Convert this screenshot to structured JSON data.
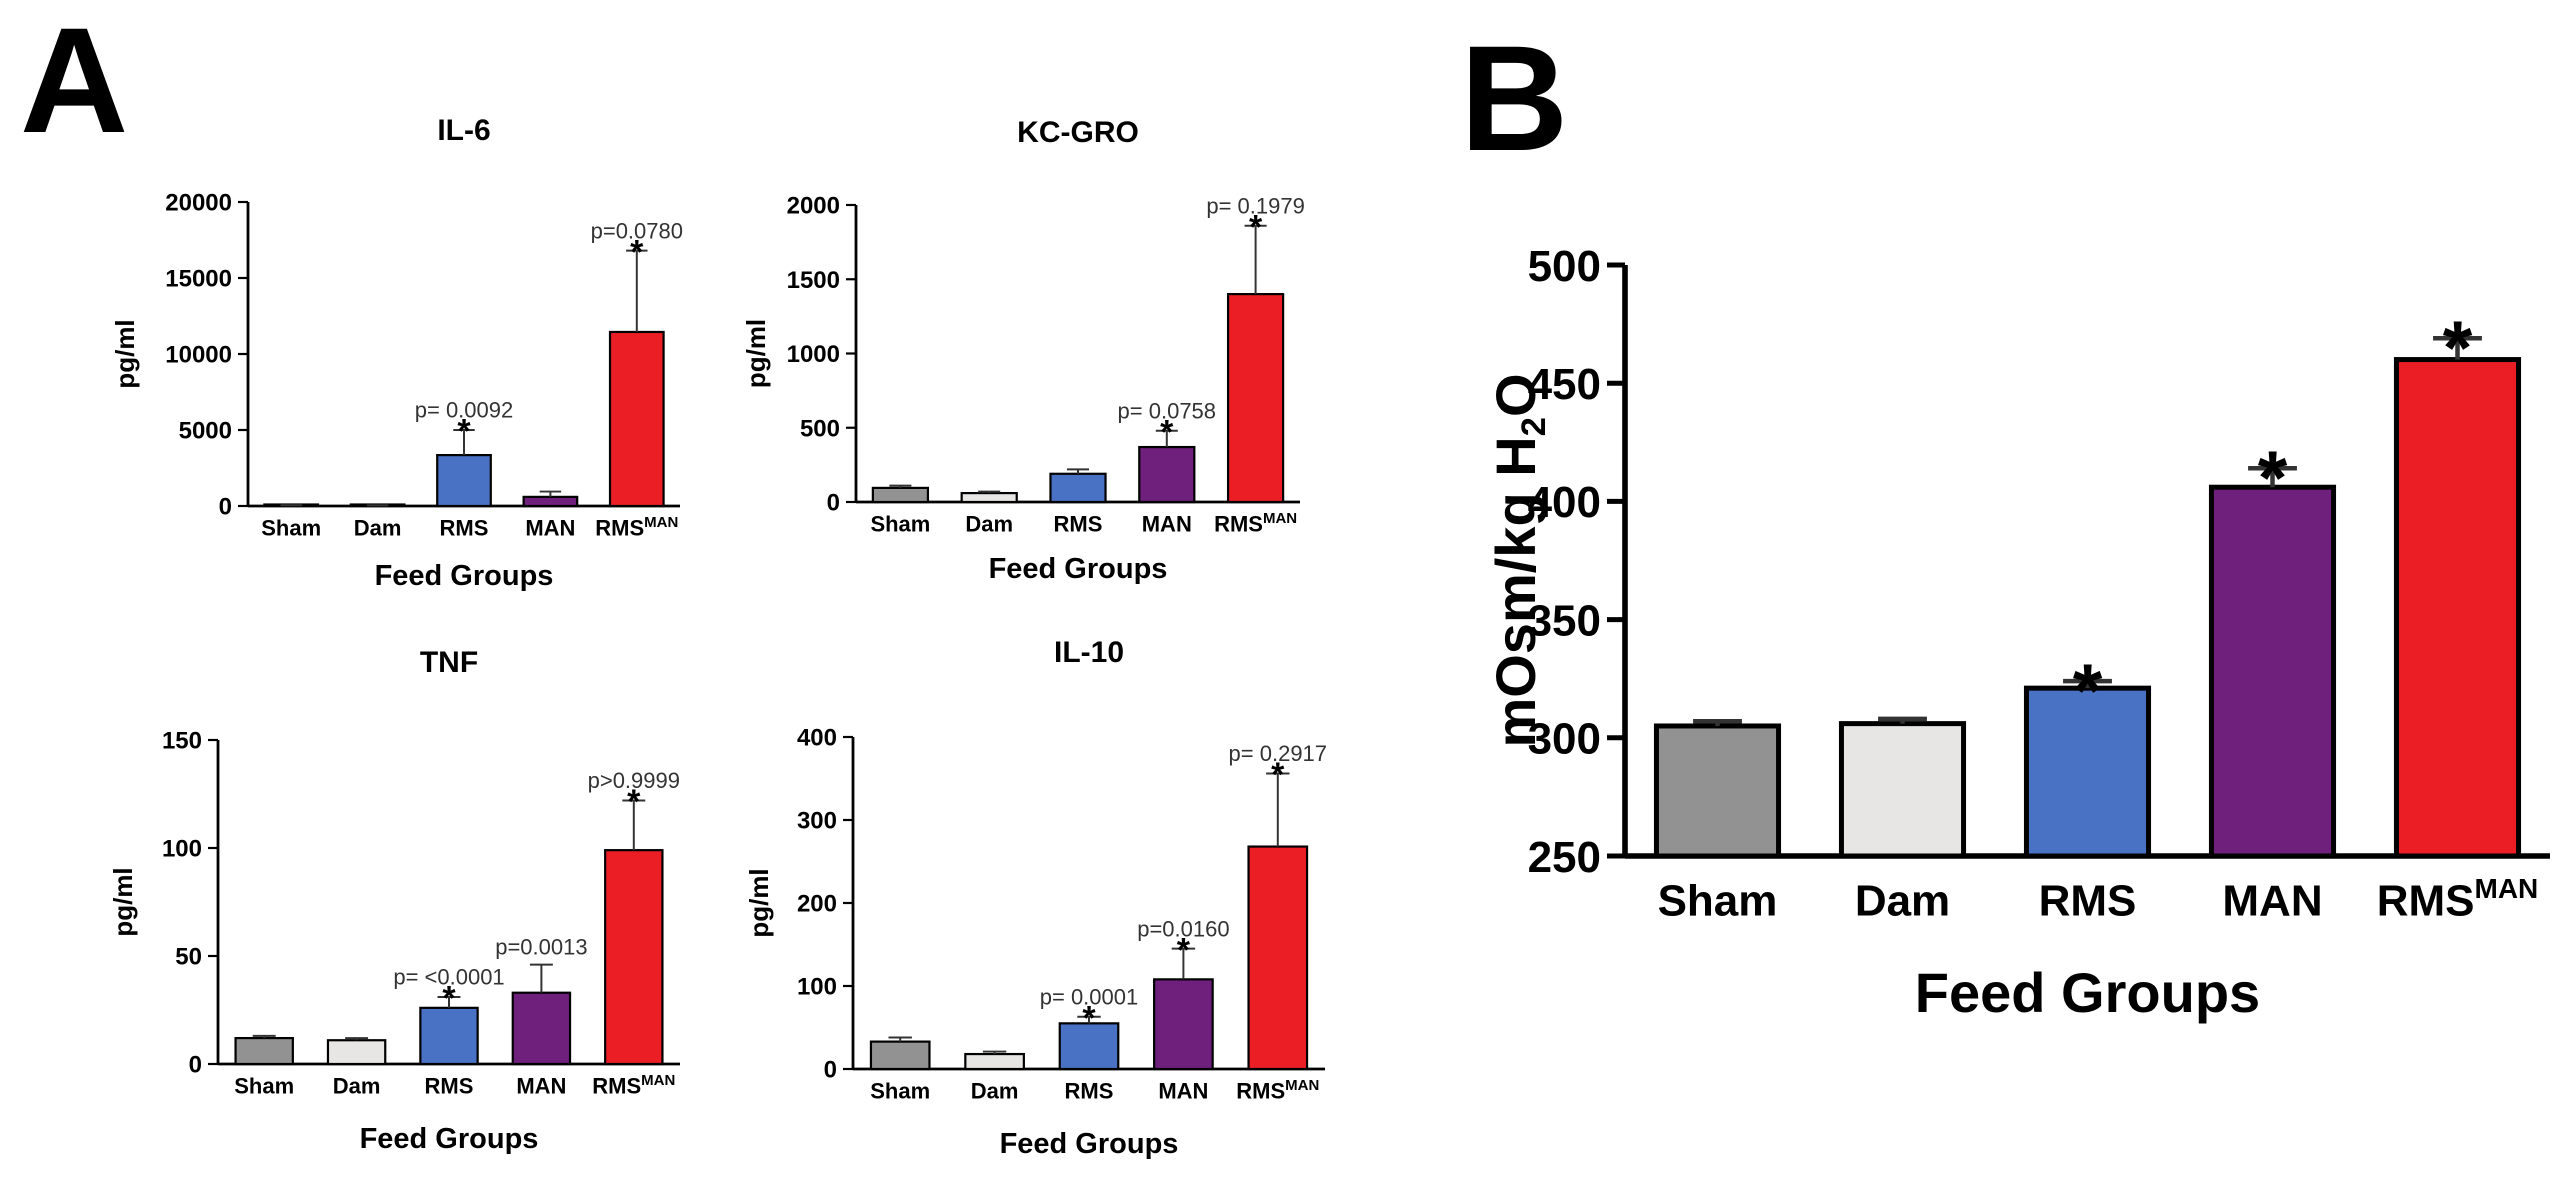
{
  "panels": {
    "a": "A",
    "b": "B"
  },
  "chart_data": [
    {
      "id": "il6",
      "type": "bar",
      "panel": "A",
      "title": "IL-6",
      "xlabel": "Feed Groups",
      "ylabel": "pg/ml",
      "categories": [
        "Sham",
        "Dam",
        "RMS",
        "MAN",
        "RMS"
      ],
      "category_superscripts": [
        "",
        "",
        "",
        "",
        "MAN"
      ],
      "values": [
        30,
        20,
        3350,
        600,
        11450
      ],
      "errors": [
        20,
        20,
        1650,
        350,
        5350
      ],
      "stars": [
        "",
        "",
        "*",
        "",
        "*"
      ],
      "pvalues": [
        "",
        "",
        "p= 0.0092",
        "",
        "p=0.0780"
      ],
      "ylim": [
        0,
        20000
      ],
      "yticks": [
        0,
        5000,
        10000,
        15000,
        20000
      ],
      "colors": [
        "#929292",
        "#e8e6e5",
        "#4a72c4",
        "#6f1f7c",
        "#ec1e25"
      ]
    },
    {
      "id": "kcgro",
      "type": "bar",
      "panel": "A",
      "title": "KC-GRO",
      "xlabel": "Feed Groups",
      "ylabel": "pg/ml",
      "categories": [
        "Sham",
        "Dam",
        "RMS",
        "MAN",
        "RMS"
      ],
      "category_superscripts": [
        "",
        "",
        "",
        "",
        "MAN"
      ],
      "values": [
        95,
        60,
        190,
        370,
        1400
      ],
      "errors": [
        15,
        10,
        30,
        110,
        460
      ],
      "stars": [
        "",
        "",
        "",
        "*",
        "*"
      ],
      "pvalues": [
        "",
        "",
        "",
        "p= 0.0758",
        "p= 0.1979"
      ],
      "ylim": [
        0,
        2000
      ],
      "yticks": [
        0,
        500,
        1000,
        1500,
        2000
      ],
      "colors": [
        "#929292",
        "#e8e6e5",
        "#4a72c4",
        "#6f1f7c",
        "#ec1e25"
      ]
    },
    {
      "id": "tnf",
      "type": "bar",
      "panel": "A",
      "title": "TNF",
      "xlabel": "Feed Groups",
      "ylabel": "pg/ml",
      "categories": [
        "Sham",
        "Dam",
        "RMS",
        "MAN",
        "RMS"
      ],
      "category_superscripts": [
        "",
        "",
        "",
        "",
        "MAN"
      ],
      "values": [
        12,
        11,
        26,
        33,
        99
      ],
      "errors": [
        1,
        1,
        5,
        13,
        23
      ],
      "stars": [
        "",
        "",
        "*",
        "",
        "*"
      ],
      "pvalues": [
        "",
        "",
        "p= <0.0001",
        "p=0.0013",
        "p>0.9999"
      ],
      "ylim": [
        0,
        150
      ],
      "yticks": [
        0,
        50,
        100,
        150
      ],
      "colors": [
        "#929292",
        "#e8e6e5",
        "#4a72c4",
        "#6f1f7c",
        "#ec1e25"
      ]
    },
    {
      "id": "il10",
      "type": "bar",
      "panel": "A",
      "title": "IL-10",
      "xlabel": "Feed Groups",
      "ylabel": "pg/ml",
      "categories": [
        "Sham",
        "Dam",
        "RMS",
        "MAN",
        "RMS"
      ],
      "category_superscripts": [
        "",
        "",
        "",
        "",
        "MAN"
      ],
      "values": [
        33,
        18,
        55,
        108,
        268
      ],
      "errors": [
        5,
        3,
        8,
        37,
        88
      ],
      "stars": [
        "",
        "",
        "*",
        "*",
        "*"
      ],
      "pvalues": [
        "",
        "",
        "p=  0.0001",
        "p=0.0160",
        "p= 0.2917"
      ],
      "ylim": [
        0,
        400
      ],
      "yticks": [
        0,
        100,
        200,
        300,
        400
      ],
      "colors": [
        "#929292",
        "#e8e6e5",
        "#4a72c4",
        "#6f1f7c",
        "#ec1e25"
      ]
    },
    {
      "id": "osm",
      "type": "bar",
      "panel": "B",
      "title": "",
      "xlabel": "Feed Groups",
      "ylabel": "mOsm/kg H",
      "ylabel_subscript": "2",
      "ylabel_suffix": "O",
      "categories": [
        "Sham",
        "Dam",
        "RMS",
        "MAN",
        "RMS"
      ],
      "category_superscripts": [
        "",
        "",
        "",
        "",
        "MAN"
      ],
      "values": [
        305,
        306,
        321,
        406,
        460
      ],
      "errors": [
        2,
        2,
        3,
        8,
        9
      ],
      "stars": [
        "",
        "",
        "*",
        "*",
        "*"
      ],
      "pvalues": [
        "",
        "",
        "",
        "",
        ""
      ],
      "ylim": [
        250,
        500
      ],
      "yticks": [
        250,
        300,
        350,
        400,
        450,
        500
      ],
      "colors": [
        "#929292",
        "#e8e6e5",
        "#4a72c4",
        "#6f1f7c",
        "#ec1e25"
      ]
    }
  ]
}
